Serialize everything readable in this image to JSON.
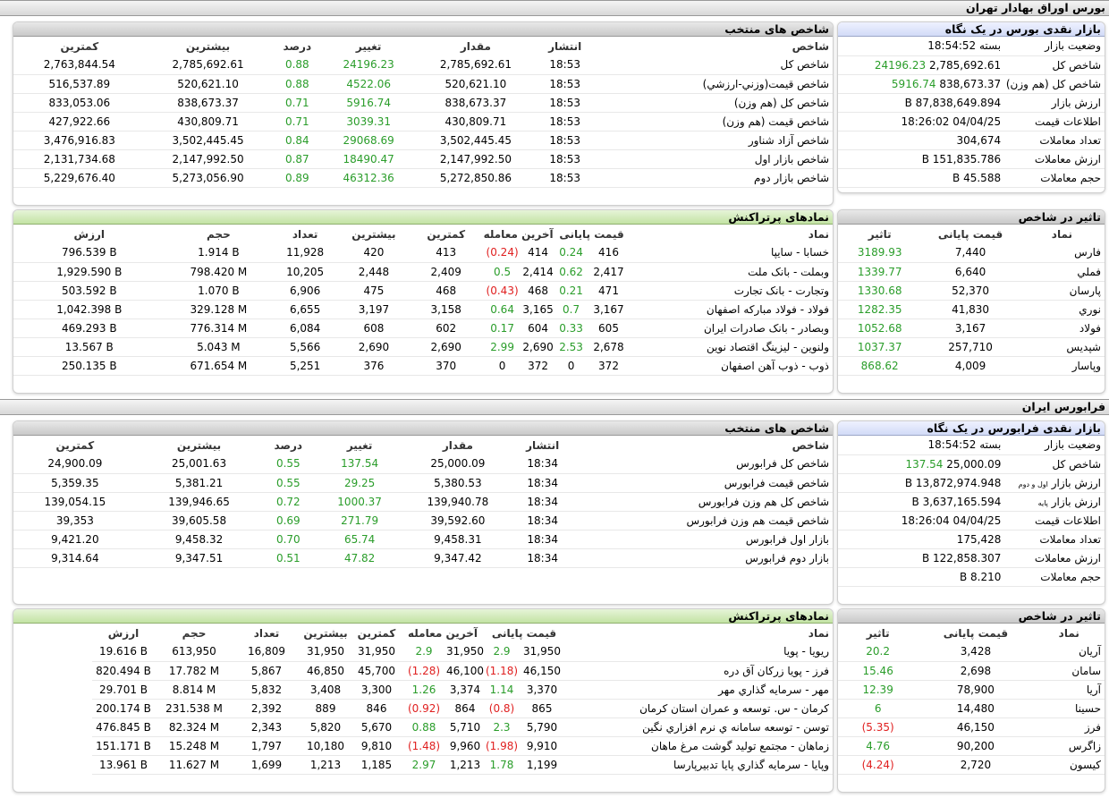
{
  "tehran": {
    "title": "بورس اوراق بهادار تهران",
    "market": {
      "title": "بازار نقدی بورس در یک نگاه",
      "rows": [
        {
          "label": "وضعیت بازار",
          "value": "بسته 18:54:52",
          "change": ""
        },
        {
          "label": "شاخص کل",
          "value": "2,785,692.61",
          "change": "24196.23"
        },
        {
          "label": "شاخص کل (هم وزن)",
          "value": "838,673.37",
          "change": "5916.74"
        },
        {
          "label": "ارزش بازار",
          "value": "87,838,649.894 B",
          "change": ""
        },
        {
          "label": "اطلاعات قیمت",
          "value": "04/04/25 18:26:02",
          "change": ""
        },
        {
          "label": "تعداد معاملات",
          "value": "304,674",
          "change": ""
        },
        {
          "label": "ارزش معاملات",
          "value": "151,835.786 B",
          "change": ""
        },
        {
          "label": "حجم معاملات",
          "value": "45.588 B",
          "change": ""
        }
      ]
    },
    "indices": {
      "title": "شاخص های منتخب",
      "headers": [
        "شاخص",
        "انتشار",
        "مقدار",
        "تغییر",
        "درصد",
        "بیشترین",
        "کمترین"
      ],
      "rows": [
        {
          "name": "شاخص کل",
          "time": "18:53",
          "value": "2,785,692.61",
          "change": "24196.23",
          "pct": "0.88",
          "max": "2,785,692.61",
          "min": "2,763,844.54"
        },
        {
          "name": "شاخص قیمت(وزني-ارزشي)",
          "time": "18:53",
          "value": "520,621.10",
          "change": "4522.06",
          "pct": "0.88",
          "max": "520,621.10",
          "min": "516,537.89"
        },
        {
          "name": "شاخص کل (هم وزن)",
          "time": "18:53",
          "value": "838,673.37",
          "change": "5916.74",
          "pct": "0.71",
          "max": "838,673.37",
          "min": "833,053.06"
        },
        {
          "name": "شاخص قیمت (هم وزن)",
          "time": "18:53",
          "value": "430,809.71",
          "change": "3039.31",
          "pct": "0.71",
          "max": "430,809.71",
          "min": "427,922.66"
        },
        {
          "name": "شاخص آزاد شناور",
          "time": "18:53",
          "value": "3,502,445.45",
          "change": "29068.69",
          "pct": "0.84",
          "max": "3,502,445.45",
          "min": "3,476,916.83"
        },
        {
          "name": "شاخص بازار اول",
          "time": "18:53",
          "value": "2,147,992.50",
          "change": "18490.47",
          "pct": "0.87",
          "max": "2,147,992.50",
          "min": "2,131,734.68"
        },
        {
          "name": "شاخص بازار دوم",
          "time": "18:53",
          "value": "5,272,850.86",
          "change": "46312.36",
          "pct": "0.89",
          "max": "5,273,056.90",
          "min": "5,229,676.40"
        }
      ]
    },
    "impact": {
      "title": "تاثیر در شاخص",
      "headers": [
        "نماد",
        "قیمت پایانی",
        "تاثیر"
      ],
      "rows": [
        {
          "symbol": "فارس",
          "price": "7,440",
          "impact": "3189.93",
          "neg": false
        },
        {
          "symbol": "فملي",
          "price": "6,640",
          "impact": "1339.77",
          "neg": false
        },
        {
          "symbol": "پارسان",
          "price": "52,370",
          "impact": "1330.68",
          "neg": false
        },
        {
          "symbol": "نوري",
          "price": "41,830",
          "impact": "1282.35",
          "neg": false
        },
        {
          "symbol": "فولاد",
          "price": "3,167",
          "impact": "1052.68",
          "neg": false
        },
        {
          "symbol": "شپديس",
          "price": "257,710",
          "impact": "1037.37",
          "neg": false
        },
        {
          "symbol": "وپاسار",
          "price": "4,009",
          "impact": "868.62",
          "neg": false
        }
      ]
    },
    "trades": {
      "title": "نمادهای پرتراکنش",
      "headers": [
        "نماد",
        "قیمت پایانی",
        "آخرین معامله",
        "کمترین",
        "بیشترین",
        "تعداد",
        "حجم",
        "ارزش"
      ],
      "rows": [
        {
          "name": "خسابا - سايپا",
          "close": "416",
          "close_chg": "0.24",
          "close_neg": false,
          "last": "414",
          "last_chg": "(0.24)",
          "last_neg": true,
          "min": "413",
          "max": "420",
          "count": "11,928",
          "vol": "1.914 B",
          "val": "796.539 B"
        },
        {
          "name": "وبملت - بانک ملت",
          "close": "2,417",
          "close_chg": "0.62",
          "close_neg": false,
          "last": "2,414",
          "last_chg": "0.5",
          "last_neg": false,
          "min": "2,409",
          "max": "2,448",
          "count": "10,205",
          "vol": "798.420 M",
          "val": "1,929.590 B"
        },
        {
          "name": "وتجارت - بانک تجارت",
          "close": "471",
          "close_chg": "0.21",
          "close_neg": false,
          "last": "468",
          "last_chg": "(0.43)",
          "last_neg": true,
          "min": "468",
          "max": "475",
          "count": "6,906",
          "vol": "1.070 B",
          "val": "503.592 B"
        },
        {
          "name": "فولاد - فولاد مبارکه اصفهان",
          "close": "3,167",
          "close_chg": "0.7",
          "close_neg": false,
          "last": "3,165",
          "last_chg": "0.64",
          "last_neg": false,
          "min": "3,158",
          "max": "3,197",
          "count": "6,655",
          "vol": "329.128 M",
          "val": "1,042.398 B"
        },
        {
          "name": "وبصادر - بانک صادرات ايران",
          "close": "605",
          "close_chg": "0.33",
          "close_neg": false,
          "last": "604",
          "last_chg": "0.17",
          "last_neg": false,
          "min": "602",
          "max": "608",
          "count": "6,084",
          "vol": "776.314 M",
          "val": "469.293 B"
        },
        {
          "name": "ولنوين - ليزينگ اقتصاد نوين",
          "close": "2,678",
          "close_chg": "2.53",
          "close_neg": false,
          "last": "2,690",
          "last_chg": "2.99",
          "last_neg": false,
          "min": "2,690",
          "max": "2,690",
          "count": "5,566",
          "vol": "5.043 M",
          "val": "13.567 B"
        },
        {
          "name": "ذوب - ذوب آهن اصفهان",
          "close": "372",
          "close_chg": "0",
          "close_neg": null,
          "last": "372",
          "last_chg": "0",
          "last_neg": null,
          "min": "370",
          "max": "376",
          "count": "5,251",
          "vol": "671.654 M",
          "val": "250.135 B"
        }
      ]
    }
  },
  "farabourse": {
    "title": "فرابورس ایران",
    "market": {
      "title": "بازار نقدی فرابورس در یک نگاه",
      "rows": [
        {
          "label": "وضعیت بازار",
          "label_small": "",
          "value": "بسته 18:54:52",
          "change": ""
        },
        {
          "label": "شاخص کل",
          "label_small": "",
          "value": "25,000.09",
          "change": "137.54"
        },
        {
          "label": "ارزش بازار",
          "label_small": "اول و دوم",
          "value": "13,872,974.948 B",
          "change": ""
        },
        {
          "label": "ارزش بازار",
          "label_small": "پایه",
          "value": "3,637,165.594 B",
          "change": ""
        },
        {
          "label": "اطلاعات قیمت",
          "label_small": "",
          "value": "04/04/25 18:26:04",
          "change": ""
        },
        {
          "label": "تعداد معاملات",
          "label_small": "",
          "value": "175,428",
          "change": ""
        },
        {
          "label": "ارزش معاملات",
          "label_small": "",
          "value": "122,858.307 B",
          "change": ""
        },
        {
          "label": "حجم معاملات",
          "label_small": "",
          "value": "8.210 B",
          "change": ""
        }
      ]
    },
    "indices": {
      "title": "شاخص های منتخب",
      "headers": [
        "شاخص",
        "انتشار",
        "مقدار",
        "تغییر",
        "درصد",
        "بیشترین",
        "کمترین"
      ],
      "rows": [
        {
          "name": "شاخص کل فرابورس",
          "time": "18:34",
          "value": "25,000.09",
          "change": "137.54",
          "pct": "0.55",
          "max": "25,001.63",
          "min": "24,900.09"
        },
        {
          "name": "شاخص قیمت فرابورس",
          "time": "18:34",
          "value": "5,380.53",
          "change": "29.25",
          "pct": "0.55",
          "max": "5,381.21",
          "min": "5,359.35"
        },
        {
          "name": "شاخص کل هم وزن فرابورس",
          "time": "18:34",
          "value": "139,940.78",
          "change": "1000.37",
          "pct": "0.72",
          "max": "139,946.65",
          "min": "139,054.15"
        },
        {
          "name": "شاخص قیمت هم وزن فرابورس",
          "time": "18:34",
          "value": "39,592.60",
          "change": "271.79",
          "pct": "0.69",
          "max": "39,605.58",
          "min": "39,353"
        },
        {
          "name": "بازار اول فرابورس",
          "time": "18:34",
          "value": "9,458.31",
          "change": "65.74",
          "pct": "0.70",
          "max": "9,458.32",
          "min": "9,421.20"
        },
        {
          "name": "بازار دوم فرابورس",
          "time": "18:34",
          "value": "9,347.42",
          "change": "47.82",
          "pct": "0.51",
          "max": "9,347.51",
          "min": "9,314.64"
        }
      ]
    },
    "impact": {
      "title": "تاثیر در شاخص",
      "headers": [
        "نماد",
        "قیمت پایانی",
        "تاثیر"
      ],
      "rows": [
        {
          "symbol": "آريان",
          "price": "3,428",
          "impact": "20.2",
          "neg": false
        },
        {
          "symbol": "سامان",
          "price": "2,698",
          "impact": "15.46",
          "neg": false
        },
        {
          "symbol": "آريا",
          "price": "78,900",
          "impact": "12.39",
          "neg": false
        },
        {
          "symbol": "حسينا",
          "price": "14,480",
          "impact": "6",
          "neg": false
        },
        {
          "symbol": "فرز",
          "price": "46,150",
          "impact": "(5.35)",
          "neg": true
        },
        {
          "symbol": "زاگرس",
          "price": "90,200",
          "impact": "4.76",
          "neg": false
        },
        {
          "symbol": "کیسون",
          "price": "2,720",
          "impact": "(4.24)",
          "neg": true
        }
      ]
    },
    "trades": {
      "title": "نمادهای پرتراکنش",
      "headers": [
        "نماد",
        "قیمت پایانی",
        "آخرین معامله",
        "کمترین",
        "بیشترین",
        "تعداد",
        "حجم",
        "ارزش"
      ],
      "rows": [
        {
          "name": "ريويا - پويا",
          "close": "31,950",
          "close_chg": "2.9",
          "close_neg": false,
          "last": "31,950",
          "last_chg": "2.9",
          "last_neg": false,
          "min": "31,950",
          "max": "31,950",
          "count": "16,809",
          "vol": "613,950",
          "val": "19.616 B"
        },
        {
          "name": "فرز - پويا زرکان آق دره",
          "close": "46,150",
          "close_chg": "(1.18)",
          "close_neg": true,
          "last": "46,100",
          "last_chg": "(1.28)",
          "last_neg": true,
          "min": "45,700",
          "max": "46,850",
          "count": "5,867",
          "vol": "17.782 M",
          "val": "820.494 B"
        },
        {
          "name": "مهر - سرمايه گذاري مهر",
          "close": "3,370",
          "close_chg": "1.14",
          "close_neg": false,
          "last": "3,374",
          "last_chg": "1.26",
          "last_neg": false,
          "min": "3,300",
          "max": "3,408",
          "count": "5,832",
          "vol": "8.814 M",
          "val": "29.701 B"
        },
        {
          "name": "کرمان - س. توسعه و عمران استان کرمان",
          "close": "865",
          "close_chg": "(0.8)",
          "close_neg": true,
          "last": "864",
          "last_chg": "(0.92)",
          "last_neg": true,
          "min": "846",
          "max": "889",
          "count": "2,392",
          "vol": "231.538 M",
          "val": "200.174 B"
        },
        {
          "name": "توسن - توسعه سامانه ي نرم افزاري نگين",
          "close": "5,790",
          "close_chg": "2.3",
          "close_neg": false,
          "last": "5,710",
          "last_chg": "0.88",
          "last_neg": false,
          "min": "5,670",
          "max": "5,820",
          "count": "2,343",
          "vol": "82.324 M",
          "val": "476.845 B"
        },
        {
          "name": "زماهان - مجتمع توليد گوشت مرغ ماهان",
          "close": "9,910",
          "close_chg": "(1.98)",
          "close_neg": true,
          "last": "9,960",
          "last_chg": "(1.48)",
          "last_neg": true,
          "min": "9,810",
          "max": "10,180",
          "count": "1,797",
          "vol": "15.248 M",
          "val": "151.171 B"
        },
        {
          "name": "وپايا - سرمايه گذاري پايا تدبيرپارسا",
          "close": "1,199",
          "close_chg": "1.78",
          "close_neg": false,
          "last": "1,213",
          "last_chg": "2.97",
          "last_neg": false,
          "min": "1,185",
          "max": "1,213",
          "count": "1,699",
          "vol": "11.627 M",
          "val": "13.961 B"
        }
      ]
    }
  }
}
